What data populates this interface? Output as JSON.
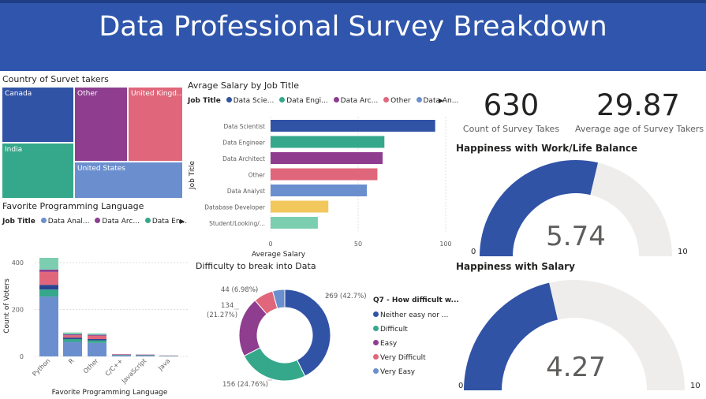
{
  "header": {
    "title": "Data Professional Survey Breakdown"
  },
  "colors": {
    "blue": "#3153a6",
    "teal": "#35a88b",
    "purple": "#8e3d8f",
    "pink": "#e0677b",
    "lightblue": "#6b8fce",
    "yellow": "#f2c75c",
    "mint": "#7bcfb0",
    "navy": "#2a4590",
    "gray": "#eeedec",
    "banner": "#2f56ac"
  },
  "treemap": {
    "title": "Country of Survet takers",
    "tiles": [
      {
        "label": "Canada",
        "color": "#3153a6"
      },
      {
        "label": "India",
        "color": "#35a88b"
      },
      {
        "label": "Other",
        "color": "#8e3d8f"
      },
      {
        "label": "United Kingd...",
        "color": "#e0677b"
      },
      {
        "label": "United States",
        "color": "#6b8fce"
      }
    ]
  },
  "salary": {
    "title": "Avrage Salary by Job Title",
    "legend_title": "Job Title",
    "legend_items": [
      {
        "label": "Data Scie...",
        "color": "#3153a6"
      },
      {
        "label": "Data Engi...",
        "color": "#35a88b"
      },
      {
        "label": "Data Arc...",
        "color": "#8e3d8f"
      },
      {
        "label": "Other",
        "color": "#e0677b"
      },
      {
        "label": "Data An...",
        "color": "#6b8fce"
      }
    ],
    "xlabel": "Average Salary",
    "ylabel": "Job Title"
  },
  "kpis": [
    {
      "value": "630",
      "label": "Count of Survey Takes"
    },
    {
      "value": "29.87",
      "label": "Average age of Survey Takers"
    }
  ],
  "gauges": [
    {
      "title": "Happiness with Work/Life Balance",
      "value_text": "5.74",
      "min": "0",
      "max": "10"
    },
    {
      "title": "Happiness with Salary",
      "value_text": "4.27",
      "min": "0",
      "max": "10"
    }
  ],
  "languages": {
    "title": "Favorite Programming Language",
    "legend_title": "Job Title",
    "legend_items": [
      {
        "label": "Data Anal...",
        "color": "#6b8fce"
      },
      {
        "label": "Data Arc...",
        "color": "#8e3d8f"
      },
      {
        "label": "Data En...",
        "color": "#35a88b"
      }
    ],
    "xlabel": "Favorite Programming Language",
    "ylabel": "Count of Voters"
  },
  "difficulty": {
    "title": "Difficulty to break into Data",
    "legend_title": "Q7 - How difficult w...",
    "labels": [
      "269 (42.7%)",
      "156 (24.76%)",
      "134",
      "(21.27%)",
      "44 (6.98%)"
    ],
    "legend_items": [
      {
        "label": "Neither easy nor ...",
        "color": "#3153a6"
      },
      {
        "label": "Difficult",
        "color": "#35a88b"
      },
      {
        "label": "Easy",
        "color": "#8e3d8f"
      },
      {
        "label": "Very Difficult",
        "color": "#e0677b"
      },
      {
        "label": "Very Easy",
        "color": "#6b8fce"
      }
    ]
  },
  "chart_data": [
    {
      "type": "bar",
      "orientation": "horizontal",
      "title": "Avrage Salary by Job Title",
      "categories": [
        "Data Scientist",
        "Data Engineer",
        "Data Architect",
        "Other",
        "Data Analyst",
        "Database Developer",
        "Student/Looking/..."
      ],
      "values": [
        94,
        65,
        64,
        61,
        55,
        33,
        27
      ],
      "colors": [
        "#3153a6",
        "#35a88b",
        "#8e3d8f",
        "#e0677b",
        "#6b8fce",
        "#f2c75c",
        "#7bcfb0"
      ],
      "xlabel": "Average Salary",
      "ylabel": "Job Title",
      "xlim": [
        0,
        100
      ],
      "xticks": [
        "0",
        "50",
        "100"
      ]
    },
    {
      "type": "bar",
      "stacked": true,
      "title": "Favorite Programming Language",
      "categories": [
        "Python",
        "R",
        "Other",
        "C/C++",
        "JavaScript",
        "Java"
      ],
      "series": [
        {
          "name": "Data Anal...",
          "color": "#6b8fce",
          "values": [
            255,
            62,
            58,
            4,
            3,
            2
          ]
        },
        {
          "name": "Data En...",
          "color": "#35a88b",
          "values": [
            30,
            12,
            10,
            2,
            2,
            1
          ]
        },
        {
          "color": "#2a4590",
          "values": [
            20,
            6,
            6,
            1,
            1,
            0
          ]
        },
        {
          "color": "#e0677b",
          "values": [
            55,
            10,
            14,
            2,
            1,
            1
          ]
        },
        {
          "name": "Data Arc...",
          "color": "#8e3d8f",
          "values": [
            10,
            4,
            4,
            1,
            1,
            0
          ]
        },
        {
          "color": "#7bcfb0",
          "values": [
            50,
            8,
            6,
            0,
            0,
            0
          ]
        }
      ],
      "xlabel": "Favorite Programming Language",
      "ylabel": "Count of Voters",
      "ylim": [
        0,
        420
      ],
      "yticks": [
        "0",
        "200",
        "400"
      ]
    },
    {
      "type": "pie",
      "donut": true,
      "title": "Difficulty to break into Data",
      "categories": [
        "Neither easy nor ...",
        "Difficult",
        "Easy",
        "Very Difficult",
        "Very Easy"
      ],
      "values": [
        269,
        156,
        134,
        44,
        27
      ],
      "percents": [
        42.7,
        24.76,
        21.27,
        6.98,
        4.29
      ],
      "colors": [
        "#3153a6",
        "#35a88b",
        "#8e3d8f",
        "#e0677b",
        "#6b8fce"
      ]
    },
    {
      "type": "gauge",
      "title": "Happiness with Work/Life Balance",
      "value": 5.74,
      "min": 0,
      "max": 10
    },
    {
      "type": "gauge",
      "title": "Happiness with Salary",
      "value": 4.27,
      "min": 0,
      "max": 10
    }
  ]
}
